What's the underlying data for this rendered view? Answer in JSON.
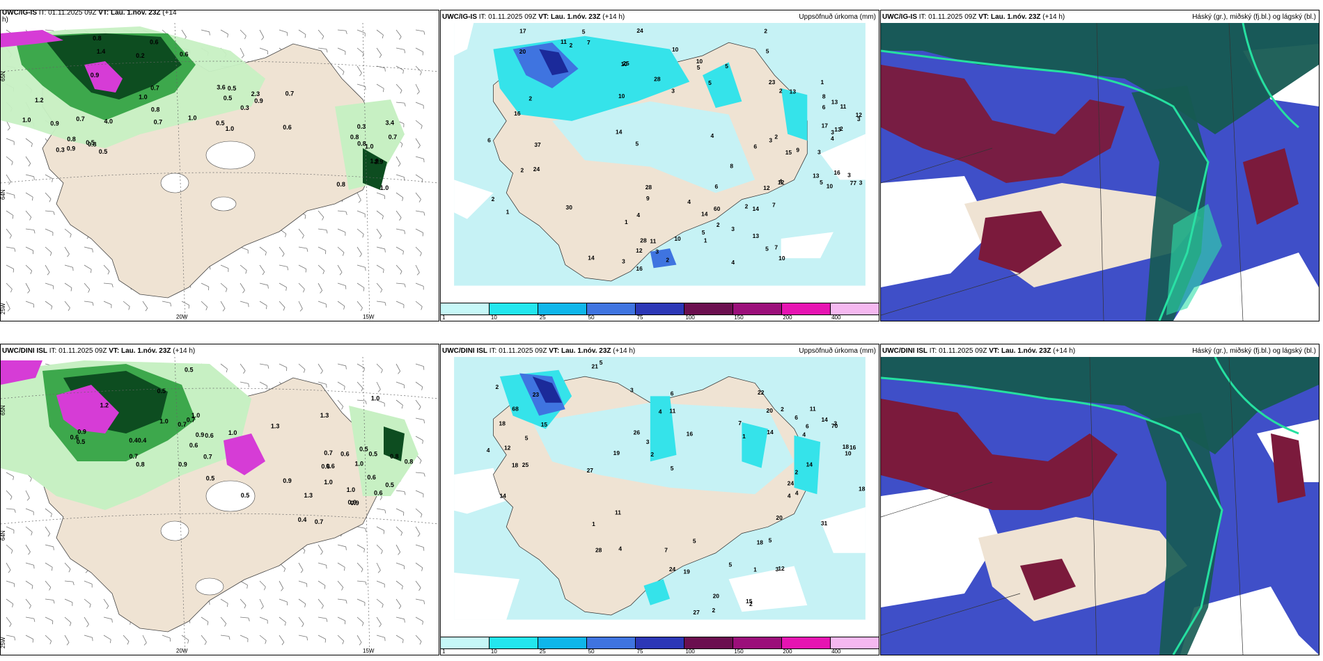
{
  "colors": {
    "land": "#efe3d3",
    "sea_white": "#ffffff",
    "precip_light": "#c6f2f5",
    "precip_cyan": "#35e3ea",
    "precip_blue": "#3f74e0",
    "precip_dark": "#1b2a9a",
    "magenta": "#d63cd6",
    "pale_green": "#c7f0c3",
    "mid_green": "#3da84c",
    "dark_green": "#0d4d20",
    "high_cloud": "#165a52",
    "mid_cloud": "#7b1a3c",
    "low_cloud": "#3f4fc8",
    "green_contour": "#25e0a0"
  },
  "panels": {
    "top_left": {
      "model": "UWC/IG-IS",
      "it_text": "IT: 01.11.2025 09Z",
      "vt_text": "VT: Lau. 1.nóv. 23Z",
      "lead": "(+14",
      "lead_cont": "h)",
      "lat_labels": [
        "65N",
        "64N",
        "25W"
      ],
      "lon_labels": [
        "20W",
        "15W"
      ],
      "values": [
        "1.0",
        "0.9",
        "3.4",
        "0.3",
        "0.2",
        "0.3",
        "0.3",
        "2.3",
        "1.2",
        "0.7",
        "0.8",
        "1.0",
        "1.4",
        "4.0",
        "2.9",
        "3.6",
        "0.8",
        "0.7",
        "1.0",
        "0.7",
        "0.9",
        "0.5",
        "0.8",
        "0.5",
        "0.6",
        "0.8",
        "1.0",
        "0.6",
        "0.7",
        "0.5",
        "0.8",
        "0.5",
        "1.0",
        "0.9",
        "0.7",
        "0.9",
        "1.0",
        "0.8",
        "1.0",
        "0.5",
        "0.6",
        "0.8"
      ]
    },
    "top_mid": {
      "model": "UWC/IG-IS",
      "it_text": "IT: 01.11.2025 09Z",
      "vt_text": "VT: Lau. 1.nóv. 23Z",
      "lead": "(+14 h)",
      "unit_title": "Uppsöfnuð úrkoma (mm)",
      "values": [
        "10",
        "14",
        "16",
        "16",
        "5",
        "16",
        "28",
        "77",
        "24",
        "14",
        "14",
        "13",
        "25",
        "28",
        "60",
        "17",
        "20",
        "30",
        "11",
        "23",
        "5",
        "13",
        "5",
        "12",
        "5",
        "24",
        "14",
        "15",
        "17",
        "8",
        "10",
        "10",
        "28",
        "6",
        "3",
        "3",
        "1",
        "2",
        "2",
        "3",
        "10",
        "6",
        "10",
        "4",
        "7",
        "6",
        "7",
        "5",
        "11",
        "9",
        "7",
        "12",
        "8",
        "12",
        "12",
        "11",
        "10",
        "5",
        "4",
        "2",
        "2",
        "2",
        "1",
        "2",
        "3",
        "1",
        "1",
        "3",
        "2",
        "4",
        "2",
        "3",
        "2",
        "37",
        "3",
        "4",
        "5",
        "6",
        "3",
        "3",
        "2",
        "4",
        "4",
        "9",
        "5",
        "2",
        "5",
        "3",
        "10",
        "13",
        "13",
        "13"
      ]
    },
    "top_right": {
      "model": "UWC/IG-IS",
      "it_text": "IT: 01.11.2025 09Z",
      "vt_text": "VT: Lau. 1.nóv. 23Z",
      "lead": "(+14 h)",
      "unit_title": "Háský (gr.), miðský (fj.bl.) og lágský (bl.)"
    },
    "bot_left": {
      "model": "UWC/DINI ISL",
      "it_text": "IT: 01.11.2025 09Z",
      "vt_text": "VT: Lau. 1.nóv. 23Z",
      "lead": "(+14 h)",
      "lat_labels": [
        "65N",
        "64N",
        "25W"
      ],
      "lon_labels": [
        "20W",
        "15W"
      ],
      "values": [
        "0.9",
        "0.8",
        "0.9",
        "1.3",
        "0.6",
        "0.40.4",
        "0.4",
        "0.6",
        "0.5",
        "0.9",
        "1.0",
        "0.5",
        "0.5",
        "0.7",
        "1.0",
        "0.6",
        "1.0",
        "0.7",
        "0.9",
        "1.0",
        "0.5",
        "0.6",
        "0.6",
        "0.8",
        "1.0",
        "0.7",
        "1.3",
        "0.5",
        "1.2",
        "1.3",
        "0.9",
        "0.7",
        "0.6",
        "1.0",
        "0.6",
        "0.8",
        "0.7",
        "0.5",
        "0.5",
        "0.6",
        "0.9",
        "0.5",
        "0.7",
        "1.0"
      ]
    },
    "bot_mid": {
      "model": "UWC/DINI ISL",
      "it_text": "IT: 01.11.2025 09Z",
      "vt_text": "VT: Lau. 1.nóv. 23Z",
      "lead": "(+14 h)",
      "unit_title": "Uppsöfnuð úrkoma (mm)",
      "values": [
        "5",
        "7",
        "3",
        "14",
        "11",
        "25",
        "28",
        "70",
        "68",
        "16",
        "19",
        "20",
        "21",
        "27",
        "27",
        "31",
        "26",
        "20",
        "5",
        "24",
        "23",
        "18",
        "12",
        "16",
        "18",
        "12",
        "24",
        "18",
        "14",
        "14",
        "15",
        "14",
        "15",
        "19",
        "20",
        "18",
        "22",
        "11",
        "5",
        "11",
        "5",
        "1",
        "2",
        "2",
        "3",
        "1",
        "2",
        "3",
        "2",
        "5",
        "7",
        "10",
        "6",
        "6",
        "5",
        "4",
        "3",
        "2",
        "18",
        "6",
        "4",
        "2",
        "4",
        "4",
        "4",
        "4",
        "1"
      ]
    },
    "bot_right": {
      "model": "UWC/DINI ISL",
      "it_text": "IT: 01.11.2025 09Z",
      "vt_text": "VT: Lau. 1.nóv. 23Z",
      "lead": "(+14 h)",
      "unit_title": "Háský (gr.), miðský (fj.bl.) og lágský (bl.)"
    }
  },
  "colorbar": {
    "labels": [
      "1",
      "10",
      "25",
      "50",
      "75",
      "100",
      "150",
      "200",
      "400"
    ],
    "colors": [
      "#c6f7f7",
      "#23e6ee",
      "#0fb6ea",
      "#3f74e0",
      "#2c37b6",
      "#6b0f4f",
      "#9b0f7a",
      "#e614b2",
      "#f5b8f0"
    ]
  }
}
